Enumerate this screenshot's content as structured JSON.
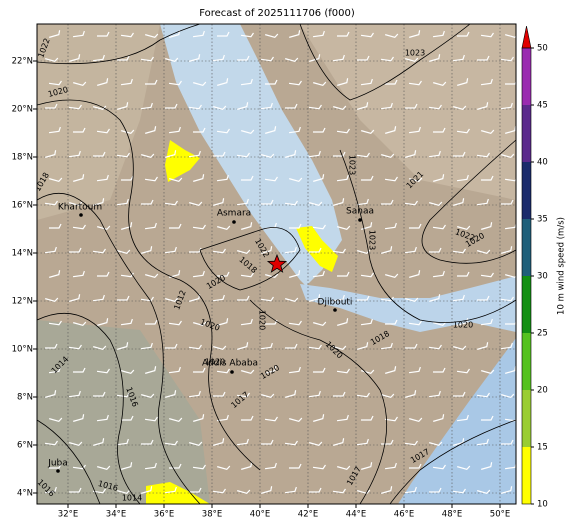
{
  "title": "Forecast of 2025111706 (f000)",
  "lon_ticks": [
    {
      "value": 32,
      "label": "32°E"
    },
    {
      "value": 34,
      "label": "34°E"
    },
    {
      "value": 36,
      "label": "36°E"
    },
    {
      "value": 38,
      "label": "38°E"
    },
    {
      "value": 40,
      "label": "40°E"
    },
    {
      "value": 42,
      "label": "42°E"
    },
    {
      "value": 44,
      "label": "44°E"
    },
    {
      "value": 46,
      "label": "46°E"
    },
    {
      "value": 48,
      "label": "48°E"
    },
    {
      "value": 50,
      "label": "50°E"
    }
  ],
  "lat_ticks": [
    {
      "value": 4,
      "label": "4°N"
    },
    {
      "value": 6,
      "label": "6°N"
    },
    {
      "value": 8,
      "label": "8°N"
    },
    {
      "value": 10,
      "label": "10°N"
    },
    {
      "value": 12,
      "label": "12°N"
    },
    {
      "value": 14,
      "label": "14°N"
    },
    {
      "value": 16,
      "label": "16°N"
    },
    {
      "value": 18,
      "label": "18°N"
    },
    {
      "value": 20,
      "label": "20°N"
    },
    {
      "value": 22,
      "label": "22°N"
    }
  ],
  "cities": [
    "Khartoum",
    "Asmara",
    "Sanaa",
    "Djibouti",
    "Addis Ababa",
    "Juba"
  ],
  "contour_labels": [
    "1022",
    "1020",
    "1018",
    "1023",
    "1023",
    "1021",
    "1023",
    "1022",
    "1020",
    "1020",
    "1022",
    "1018",
    "1020",
    "1012",
    "1020",
    "1020",
    "1020",
    "1018",
    "1014",
    "1020",
    "1020",
    "1016",
    "1017",
    "1017",
    "1017",
    "1016",
    "1016",
    "1014"
  ],
  "colorbar": {
    "label": "10 m wind speed (m/s)",
    "ticks": [
      10,
      15,
      20,
      25,
      30,
      35,
      40,
      45,
      50
    ],
    "colors": [
      "#ffff00",
      "#9acd32",
      "#55c21f",
      "#138f13",
      "#1f5f7a",
      "#1b2b6b",
      "#5b2a8c",
      "#9a2bb0"
    ],
    "extend_color": "#e00000"
  }
}
